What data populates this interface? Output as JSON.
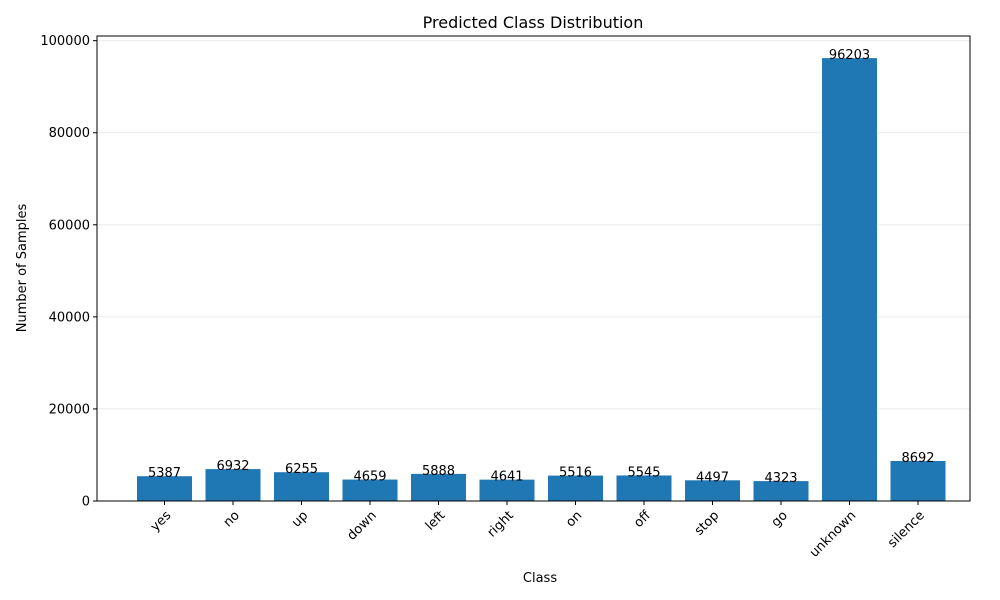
{
  "chart_data": {
    "type": "bar",
    "title": "Predicted Class Distribution",
    "xlabel": "Class",
    "ylabel": "Number of Samples",
    "categories": [
      "yes",
      "no",
      "up",
      "down",
      "left",
      "right",
      "on",
      "off",
      "stop",
      "go",
      "unknown",
      "silence"
    ],
    "values": [
      5387,
      6932,
      6255,
      4659,
      5888,
      4641,
      5516,
      5545,
      4497,
      4323,
      96203,
      8692
    ],
    "ylim": [
      0,
      101013
    ],
    "yticks": [
      0,
      20000,
      40000,
      60000,
      80000,
      100000
    ],
    "grid": "y-axis",
    "bar_color": "#1f77b4",
    "x_tick_rotation": -45
  }
}
